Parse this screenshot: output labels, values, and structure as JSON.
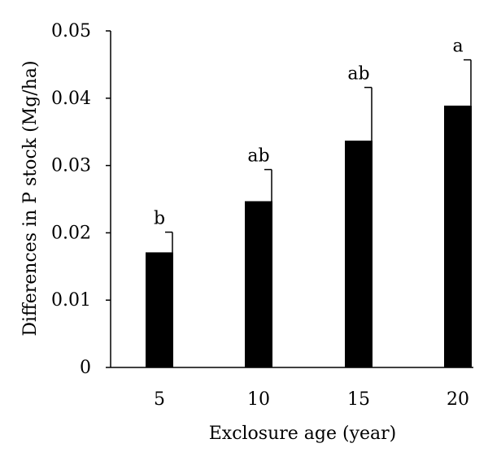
{
  "chart_data": {
    "type": "bar",
    "title": "",
    "xlabel": "Exclosure age (year)",
    "ylabel": "Differences in P stock (Mg/ha)",
    "categories": [
      "5",
      "10",
      "15",
      "20"
    ],
    "values": [
      0.0171,
      0.0247,
      0.0337,
      0.0389
    ],
    "errors": [
      0.003,
      0.0047,
      0.0079,
      0.0068
    ],
    "significance_labels": [
      "b",
      "ab",
      "ab",
      "a"
    ],
    "ylim": [
      0,
      0.05
    ],
    "yticks": [
      "0",
      "0.01",
      "0.02",
      "0.03",
      "0.04",
      "0.05"
    ],
    "ytick_values": [
      0,
      0.01,
      0.02,
      0.03,
      0.04,
      0.05
    ],
    "grid": false,
    "bar_color": "#000000"
  }
}
